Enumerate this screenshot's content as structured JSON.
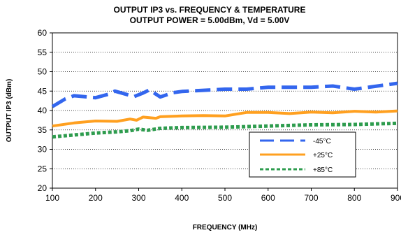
{
  "chart_data": {
    "type": "line",
    "title": "OUTPUT IP3 vs. FREQUENCY & TEMPERATURE",
    "subtitle": "OUTPUT POWER = 5.00dBm, Vd = 5.00V",
    "xlabel": "FREQUENCY (MHz)",
    "ylabel": "OUTPUT IP3 (dBm)",
    "xlim": [
      100,
      900
    ],
    "ylim": [
      20,
      60
    ],
    "xticks": [
      100,
      200,
      300,
      400,
      500,
      600,
      700,
      800,
      900
    ],
    "yticks": [
      20,
      25,
      30,
      35,
      40,
      45,
      50,
      55,
      60
    ],
    "grid": "horizontal",
    "legend_position": "lower-right",
    "series": [
      {
        "name": "-45°C",
        "color": "#3366ee",
        "dash": "long-dash",
        "x": [
          100,
          130,
          150,
          200,
          230,
          245,
          270,
          290,
          310,
          325,
          350,
          380,
          400,
          500,
          550,
          600,
          700,
          750,
          800,
          900
        ],
        "y": [
          41.0,
          43.0,
          43.8,
          43.3,
          44.2,
          45.0,
          44.2,
          43.6,
          44.5,
          45.3,
          43.5,
          44.6,
          44.9,
          45.5,
          45.5,
          46.0,
          46.0,
          46.3,
          45.5,
          47.0
        ]
      },
      {
        "name": "+25°C",
        "color": "#ffa020",
        "dash": "solid",
        "x": [
          100,
          150,
          200,
          250,
          280,
          295,
          310,
          340,
          350,
          400,
          450,
          500,
          550,
          600,
          650,
          700,
          750,
          800,
          850,
          900
        ],
        "y": [
          36.0,
          36.8,
          37.3,
          37.2,
          37.8,
          37.5,
          38.3,
          38.0,
          38.4,
          38.6,
          38.7,
          38.6,
          39.5,
          39.5,
          39.2,
          39.6,
          39.4,
          39.8,
          39.6,
          39.9
        ]
      },
      {
        "name": "+85°C",
        "color": "#2e9c4e",
        "dash": "short-dash",
        "x": [
          100,
          150,
          200,
          250,
          280,
          300,
          320,
          350,
          400,
          500,
          600,
          700,
          800,
          900
        ],
        "y": [
          33.2,
          33.7,
          34.2,
          34.5,
          34.8,
          35.2,
          34.9,
          35.4,
          35.6,
          35.7,
          36.0,
          36.3,
          36.4,
          36.7
        ]
      }
    ]
  }
}
